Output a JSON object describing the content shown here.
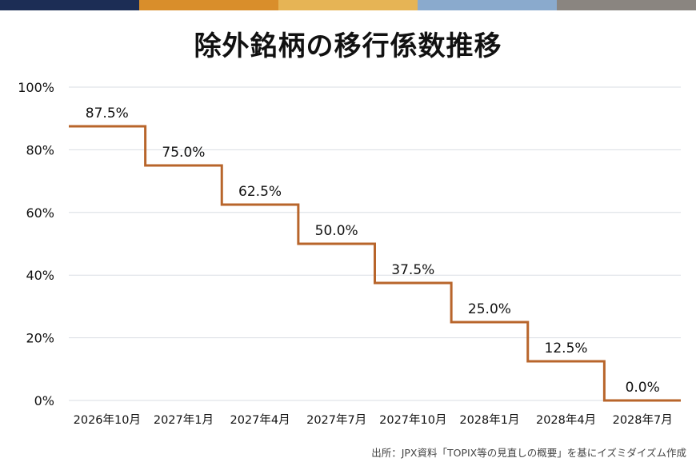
{
  "title": "除外銘柄の移行係数推移",
  "source": "出所：JPX資料「TOPIX等の見直しの概要」を基にイズミダイズム作成",
  "topbar_colors": [
    "#1c2d55",
    "#d98e2b",
    "#e6b455",
    "#8aaacd",
    "#8a8580"
  ],
  "colors": {
    "line": "#b8652b",
    "grid": "#d9dde3",
    "text": "#111111"
  },
  "chart_data": {
    "type": "line",
    "step": true,
    "categories": [
      "2026年10月",
      "2027年1月",
      "2027年4月",
      "2027年7月",
      "2027年10月",
      "2028年1月",
      "2028年4月",
      "2028年7月"
    ],
    "values": [
      87.5,
      75.0,
      62.5,
      50.0,
      37.5,
      25.0,
      12.5,
      0.0
    ],
    "data_labels": [
      "87.5%",
      "75.0%",
      "62.5%",
      "50.0%",
      "37.5%",
      "25.0%",
      "12.5%",
      "0.0%"
    ],
    "y_ticks": [
      0,
      20,
      40,
      60,
      80,
      100
    ],
    "y_tick_labels": [
      "0%",
      "20%",
      "40%",
      "60%",
      "80%",
      "100%"
    ],
    "ylim": [
      0,
      100
    ],
    "grid": true,
    "legend": "none"
  }
}
